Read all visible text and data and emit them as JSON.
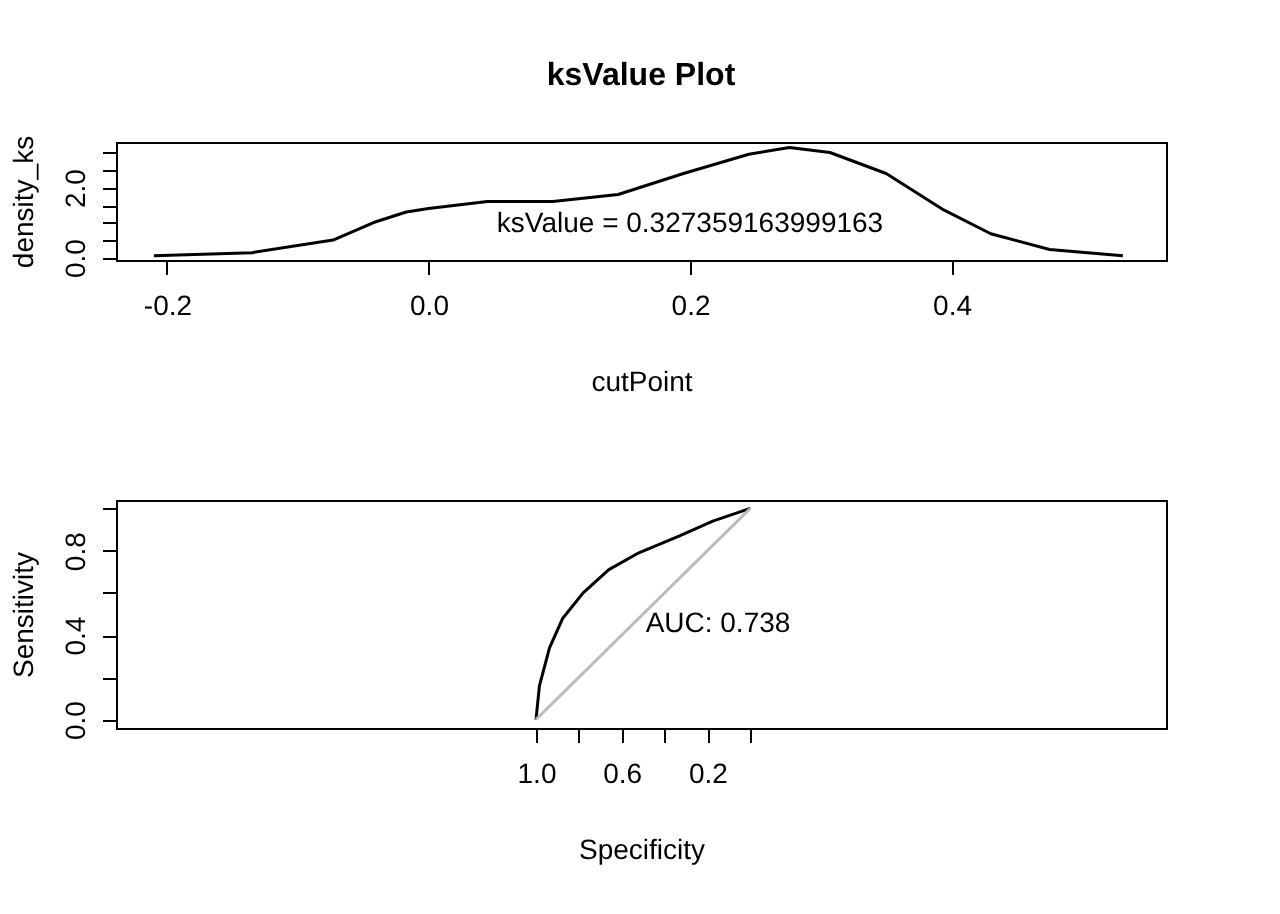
{
  "chart_data": [
    {
      "type": "line",
      "title": "ksValue Plot",
      "xlabel": "cutPoint",
      "ylabel": "density_ks",
      "x": [
        -0.21,
        -0.135,
        -0.073,
        -0.042,
        -0.017,
        0.0,
        0.045,
        0.095,
        0.145,
        0.195,
        0.245,
        0.276,
        0.307,
        0.35,
        0.394,
        0.43,
        0.475,
        0.531
      ],
      "series": [
        {
          "color": "#000000",
          "values": [
            0.05,
            0.14,
            0.5,
            1.0,
            1.3,
            1.4,
            1.6,
            1.6,
            1.8,
            2.4,
            2.95,
            3.14,
            3.0,
            2.4,
            1.36,
            0.68,
            0.23,
            0.05
          ]
        }
      ],
      "xlim": [
        -0.239,
        0.564
      ],
      "ylim": [
        -0.07,
        3.3
      ],
      "xticks": [
        {
          "value": -0.2,
          "label": "-0.2"
        },
        {
          "value": 0,
          "label": "0.0"
        },
        {
          "value": 0.2,
          "label": "0.2"
        },
        {
          "value": 0.4,
          "label": "0.4"
        }
      ],
      "yticks": [
        {
          "value": 0,
          "label": "0.0"
        },
        {
          "value": 0.5,
          "label": null
        },
        {
          "value": 1,
          "label": null
        },
        {
          "value": 1.5,
          "label": null
        },
        {
          "value": 2,
          "label": "2.0"
        },
        {
          "value": 2.5,
          "label": null
        },
        {
          "value": 3,
          "label": null
        }
      ],
      "annotations": [
        "ksValue =  0.327359163999163"
      ],
      "grid": false
    },
    {
      "type": "line",
      "xlabel": "Specificity",
      "ylabel": "Sensitivity",
      "series": [
        {
          "color": "#000000",
          "x": [
            1.0,
            0.984,
            0.937,
            0.875,
            0.78,
            0.66,
            0.52,
            0.33,
            0.175,
            0.0
          ],
          "values": [
            0,
            0.16,
            0.34,
            0.48,
            0.6,
            0.71,
            0.79,
            0.87,
            0.94,
            1.0
          ]
        },
        {
          "color": "#bbbbbb",
          "x": [
            1.0,
            0.0
          ],
          "values": [
            0,
            1.0
          ]
        }
      ],
      "xlim": [
        2.96,
        -1.94
      ],
      "ylim": [
        -0.04,
        1.04
      ],
      "xticks": [
        {
          "value": 1,
          "label": "1.0"
        },
        {
          "value": 0.8,
          "label": null
        },
        {
          "value": 0.6,
          "label": "0.6"
        },
        {
          "value": 0.4,
          "label": null
        },
        {
          "value": 0.2,
          "label": "0.2"
        },
        {
          "value": 0,
          "label": null
        }
      ],
      "yticks": [
        {
          "value": 0,
          "label": "0.0"
        },
        {
          "value": 0.2,
          "label": null
        },
        {
          "value": 0.4,
          "label": "0.4"
        },
        {
          "value": 0.6,
          "label": null
        },
        {
          "value": 0.8,
          "label": "0.8"
        },
        {
          "value": 1,
          "label": null
        }
      ],
      "annotations": [
        "AUC: 0.738"
      ],
      "grid": false
    }
  ]
}
